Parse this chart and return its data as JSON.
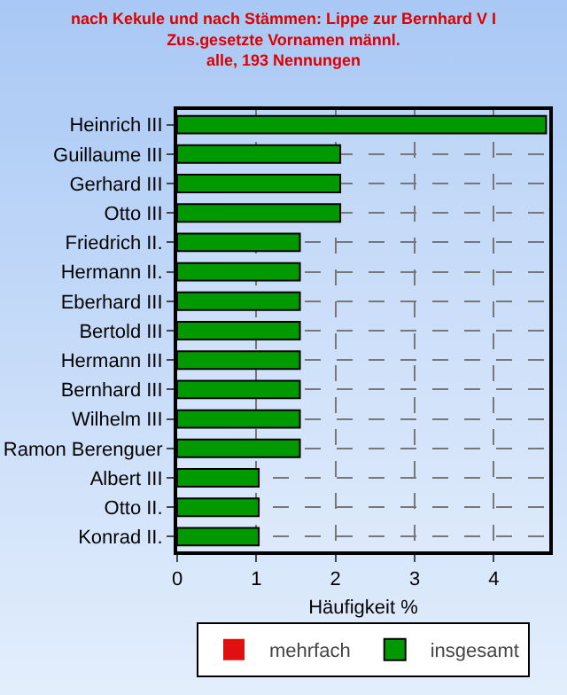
{
  "chart_data": {
    "type": "bar",
    "orientation": "horizontal",
    "title": "nach Kekule und nach Stämmen: Lippe zur Bernhard V I\nZus.gesetzte Vornamen männl.\nalle, 193 Nennungen",
    "xlabel": "Häufigkeit %",
    "categories": [
      "Heinrich III",
      "Guillaume III",
      "Gerhard III",
      "Otto III",
      "Friedrich II.",
      "Hermann II.",
      "Eberhard III",
      "Bertold III",
      "Hermann III",
      "Bernhard III",
      "Wilhelm III",
      "Ramon Berenguer",
      "Albert III",
      "Otto II.",
      "Konrad II."
    ],
    "series": [
      {
        "name": "mehrfach",
        "color": "#e01010",
        "values": [
          0,
          0,
          0,
          0,
          0,
          0,
          0,
          0,
          0,
          0,
          0,
          0,
          0,
          0,
          0
        ]
      },
      {
        "name": "insgesamt",
        "color": "#009900",
        "values": [
          4.66,
          2.06,
          2.06,
          2.06,
          1.55,
          1.55,
          1.55,
          1.55,
          1.55,
          1.55,
          1.55,
          1.55,
          1.03,
          1.03,
          1.03
        ]
      }
    ],
    "xlim": [
      0,
      4.7
    ],
    "xticks": [
      0,
      1,
      2,
      3,
      4
    ],
    "grid": true,
    "legend": "bottom"
  }
}
